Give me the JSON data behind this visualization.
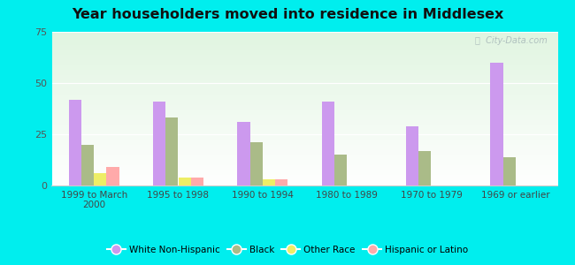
{
  "title": "Year householders moved into residence in Middlesex",
  "categories": [
    "1999 to March\n2000",
    "1995 to 1998",
    "1990 to 1994",
    "1980 to 1989",
    "1970 to 1979",
    "1969 or earlier"
  ],
  "series": {
    "White Non-Hispanic": [
      42,
      41,
      31,
      41,
      29,
      60
    ],
    "Black": [
      20,
      33,
      21,
      15,
      17,
      14
    ],
    "Other Race": [
      6,
      4,
      3,
      0,
      0,
      0
    ],
    "Hispanic or Latino": [
      9,
      4,
      3,
      0,
      0,
      0
    ]
  },
  "colors": {
    "White Non-Hispanic": "#cc99ee",
    "Black": "#aabb88",
    "Other Race": "#eeee66",
    "Hispanic or Latino": "#ffaaaa"
  },
  "ylim": [
    0,
    75
  ],
  "yticks": [
    0,
    25,
    50,
    75
  ],
  "background_color": "#00eeee",
  "bar_width": 0.15,
  "watermark": "  City-Data.com"
}
